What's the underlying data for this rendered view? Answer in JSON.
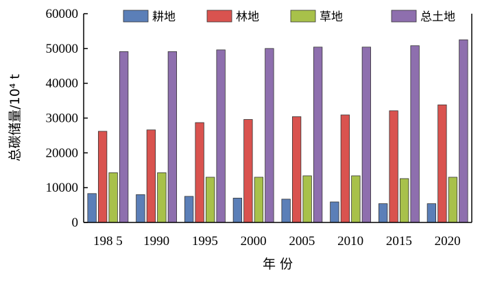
{
  "chart_data": {
    "type": "bar",
    "categories": [
      "198 5",
      "1990",
      "1995",
      "2000",
      "2005",
      "2010",
      "2015",
      "2020"
    ],
    "series": [
      {
        "name": "耕地",
        "color": "#5b7fb8",
        "values": [
          8300,
          8000,
          7500,
          7000,
          6700,
          5900,
          5400,
          5400
        ]
      },
      {
        "name": "林地",
        "color": "#d9534f",
        "values": [
          26200,
          26600,
          28700,
          29600,
          30400,
          30900,
          32100,
          33800
        ]
      },
      {
        "name": "草地",
        "color": "#a8c14a",
        "values": [
          14300,
          14300,
          13000,
          13000,
          13400,
          13400,
          12600,
          13000
        ]
      },
      {
        "name": "总土地",
        "color": "#8e6fae",
        "values": [
          49100,
          49100,
          49600,
          50000,
          50400,
          50400,
          50800,
          52500
        ]
      }
    ],
    "xlabel": "年 份",
    "ylabel": "总碳储量/10⁴ t",
    "ylim": [
      0,
      60000
    ],
    "yticks": [
      "0",
      "10000",
      "20000",
      "30000",
      "40000",
      "50000",
      "60000"
    ],
    "legend": "top",
    "grid": false
  }
}
